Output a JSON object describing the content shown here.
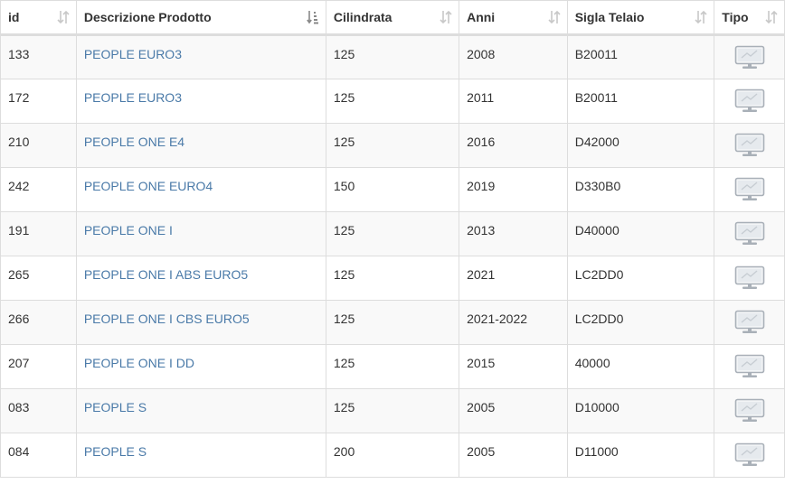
{
  "table": {
    "headers": [
      {
        "key": "id",
        "label": "id",
        "sort_icon": "sort-both-icon"
      },
      {
        "key": "desc",
        "label": "Descrizione Prodotto",
        "sort_icon": "sort-alpha-asc-icon"
      },
      {
        "key": "cil",
        "label": "Cilindrata",
        "sort_icon": "sort-both-icon"
      },
      {
        "key": "anni",
        "label": "Anni",
        "sort_icon": "sort-both-icon"
      },
      {
        "key": "sigla",
        "label": "Sigla Telaio",
        "sort_icon": "sort-both-icon"
      },
      {
        "key": "tipo",
        "label": "Tipo",
        "sort_icon": "sort-both-icon"
      }
    ],
    "rows": [
      {
        "id": "133",
        "desc": "PEOPLE EURO3",
        "cil": "125",
        "anni": "2008",
        "sigla": "B20011",
        "tipo_icon": "monitor-icon"
      },
      {
        "id": "172",
        "desc": "PEOPLE EURO3",
        "cil": "125",
        "anni": "2011",
        "sigla": "B20011",
        "tipo_icon": "monitor-icon"
      },
      {
        "id": "210",
        "desc": "PEOPLE ONE E4",
        "cil": "125",
        "anni": "2016",
        "sigla": "D42000",
        "tipo_icon": "monitor-icon"
      },
      {
        "id": "242",
        "desc": "PEOPLE ONE EURO4",
        "cil": "150",
        "anni": "2019",
        "sigla": "D330B0",
        "tipo_icon": "monitor-icon"
      },
      {
        "id": "191",
        "desc": "PEOPLE ONE I",
        "cil": "125",
        "anni": "2013",
        "sigla": "D40000",
        "tipo_icon": "monitor-icon"
      },
      {
        "id": "265",
        "desc": "PEOPLE ONE I ABS EURO5",
        "cil": "125",
        "anni": "2021",
        "sigla": "LC2DD0",
        "tipo_icon": "monitor-icon"
      },
      {
        "id": "266",
        "desc": "PEOPLE ONE I CBS EURO5",
        "cil": "125",
        "anni": "2021-2022",
        "sigla": "LC2DD0",
        "tipo_icon": "monitor-icon"
      },
      {
        "id": "207",
        "desc": "PEOPLE ONE I DD",
        "cil": "125",
        "anni": "2015",
        "sigla": "40000",
        "tipo_icon": "monitor-icon"
      },
      {
        "id": "083",
        "desc": "PEOPLE S",
        "cil": "125",
        "anni": "2005",
        "sigla": "D10000",
        "tipo_icon": "monitor-icon"
      },
      {
        "id": "084",
        "desc": "PEOPLE S",
        "cil": "200",
        "anni": "2005",
        "sigla": "D11000",
        "tipo_icon": "monitor-icon"
      }
    ]
  },
  "colors": {
    "link": "#4a7aa8",
    "border": "#dddddd",
    "stripe": "#f9f9f9",
    "sort_icon": "#c8c8c8",
    "sort_active": "#888888",
    "monitor_icon": "#a9b0b8"
  }
}
